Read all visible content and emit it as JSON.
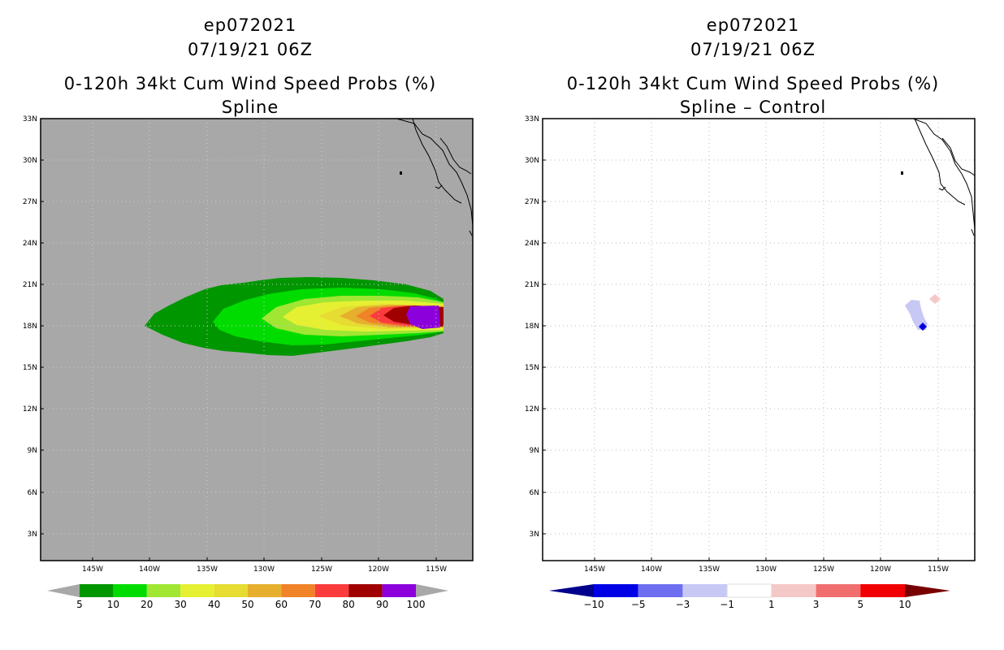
{
  "left": {
    "title_line1": "ep072021",
    "title_line2": "07/19/21 06Z",
    "title_line3": "0-120h 34kt Cum Wind Speed Probs (%)",
    "title_line4": "Spline",
    "background": "#a8a8a8",
    "colorbar": {
      "colors": [
        "#009600",
        "#00dc00",
        "#a0e632",
        "#e6f032",
        "#e6dc32",
        "#e6af2d",
        "#f08228",
        "#fa3c3c",
        "#a00000",
        "#8c00dc"
      ],
      "labels": [
        "5",
        "10",
        "20",
        "30",
        "40",
        "50",
        "60",
        "70",
        "80",
        "90",
        "100"
      ]
    }
  },
  "right": {
    "title_line1": "ep072021",
    "title_line2": "07/19/21 06Z",
    "title_line3": "0-120h 34kt Cum Wind Speed Probs (%)",
    "title_line4": "Spline – Control",
    "background": "#ffffff",
    "colorbar": {
      "colors": [
        "#0000e6",
        "#6e6ef0",
        "#c8c8f5",
        "#ffffff",
        "#f5c8c8",
        "#f06e6e",
        "#f00000"
      ],
      "end_colors": [
        "#00008c",
        "#780000"
      ],
      "labels": [
        "−10",
        "−5",
        "−3",
        "−1",
        "1",
        "3",
        "5",
        "10"
      ]
    }
  },
  "axes": {
    "lat_ticks": [
      "33N",
      "30N",
      "27N",
      "24N",
      "21N",
      "18N",
      "15N",
      "12N",
      "9N",
      "6N",
      "3N"
    ],
    "lon_ticks": [
      "145W",
      "140W",
      "135W",
      "130W",
      "125W",
      "120W",
      "115W"
    ]
  }
}
